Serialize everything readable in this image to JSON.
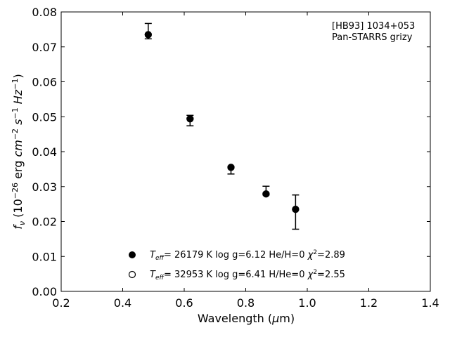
{
  "chart_data": {
    "type": "scatter",
    "xlabel": "Wavelength (μm)",
    "ylabel": "fν (10⁻²⁶ erg cm⁻² s⁻¹ Hz⁻¹)",
    "xlim": [
      0.2,
      1.4
    ],
    "ylim": [
      0.0,
      0.08
    ],
    "xticks": [
      "0.2",
      "0.4",
      "0.6",
      "0.8",
      "1.0",
      "1.2",
      "1.4"
    ],
    "yticks": [
      "0.00",
      "0.01",
      "0.02",
      "0.03",
      "0.04",
      "0.05",
      "0.06",
      "0.07",
      "0.08"
    ],
    "grid": false,
    "annotations": [
      "[HB93] 1034+053",
      "Pan-STARRS grizy"
    ],
    "observed": {
      "x": [
        0.483,
        0.619,
        0.752,
        0.866,
        0.962
      ],
      "y": [
        0.0735,
        0.0494,
        0.0355,
        0.0279,
        0.0235
      ],
      "yerr_low": [
        0.0723,
        0.0474,
        0.0336,
        0.0276,
        0.0178
      ],
      "yerr_high": [
        0.0767,
        0.0504,
        0.0358,
        0.0301,
        0.0276
      ]
    },
    "series": [
      {
        "name": "T_eff= 26179 K  log g=6.12  He/H=0  χ²=2.89",
        "marker": "filled-circle",
        "x": [
          0.483,
          0.619,
          0.752,
          0.866,
          0.962
        ],
        "y": [
          0.0735,
          0.0494,
          0.0355,
          0.0279,
          0.0235
        ]
      },
      {
        "name": "T_eff= 32953 K  log g=6.41  H/He=0  χ²=2.55",
        "marker": "open-circle",
        "x": [
          0.483,
          0.619,
          0.752,
          0.866,
          0.962
        ],
        "y": [
          0.0735,
          0.0494,
          0.0355,
          0.0279,
          0.0235
        ]
      }
    ],
    "legend": [
      {
        "teff": "26179",
        "logg": "6.12",
        "comp": "He/H=0",
        "chi2": "2.89"
      },
      {
        "teff": "32953",
        "logg": "6.41",
        "comp": "H/He=0",
        "chi2": "2.55"
      }
    ],
    "legend_placement": "lower-center"
  }
}
